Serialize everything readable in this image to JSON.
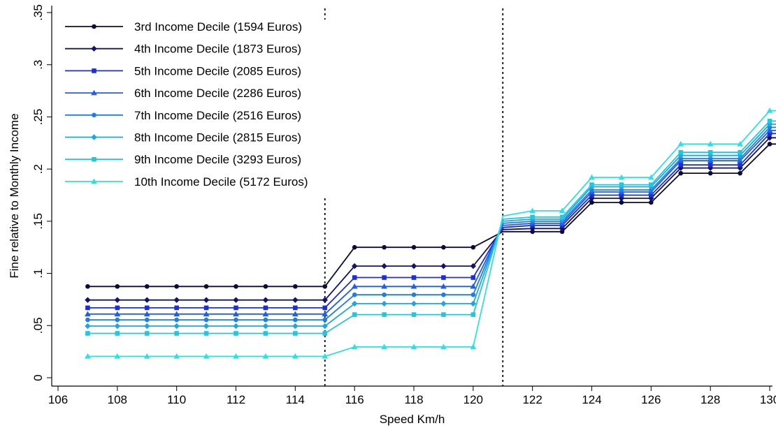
{
  "chart_data": {
    "type": "line",
    "title": "",
    "xlabel": "Speed Km/h",
    "ylabel": "Fine relative to Monthly Income",
    "xlim": [
      106,
      131
    ],
    "ylim": [
      0,
      0.35
    ],
    "x_ticks": [
      106,
      108,
      110,
      112,
      114,
      116,
      118,
      120,
      122,
      124,
      126,
      128,
      130
    ],
    "x_tick_labels": [
      "106",
      "108",
      "110",
      "112",
      "114",
      "116",
      "118",
      "120",
      "122",
      "124",
      "126",
      "128",
      "130"
    ],
    "y_ticks": [
      0,
      0.05,
      0.1,
      0.15,
      0.2,
      0.25,
      0.3,
      0.35
    ],
    "y_tick_labels": [
      "0",
      ".05",
      ".1",
      ".15",
      ".2",
      ".25",
      ".3",
      ".35"
    ],
    "grid": false,
    "legend_position": "top-left",
    "reference_lines_x": [
      115,
      121
    ],
    "x": [
      107,
      108,
      109,
      110,
      111,
      112,
      113,
      114,
      115,
      116,
      117,
      118,
      119,
      120,
      121,
      122,
      123,
      124,
      125,
      126,
      127,
      128,
      129,
      130,
      131
    ],
    "series": [
      {
        "name": "3rd Income Decile (1594 Euros)",
        "color": "#0b0b3b",
        "marker": "circle",
        "values": [
          0.0875,
          0.0875,
          0.0875,
          0.0875,
          0.0875,
          0.0875,
          0.0875,
          0.0875,
          0.0875,
          0.125,
          0.125,
          0.125,
          0.125,
          0.125,
          0.14,
          0.14,
          0.14,
          0.168,
          0.168,
          0.168,
          0.196,
          0.196,
          0.196,
          0.224,
          0.224
        ]
      },
      {
        "name": "4th Income Decile (1873 Euros)",
        "color": "#13136e",
        "marker": "diamond",
        "values": [
          0.0745,
          0.0745,
          0.0745,
          0.0745,
          0.0745,
          0.0745,
          0.0745,
          0.0745,
          0.0745,
          0.107,
          0.107,
          0.107,
          0.107,
          0.107,
          0.142,
          0.143,
          0.143,
          0.172,
          0.172,
          0.172,
          0.201,
          0.201,
          0.201,
          0.23,
          0.23
        ]
      },
      {
        "name": "5th Income Decile (2085 Euros)",
        "color": "#1c2ed6",
        "marker": "square",
        "values": [
          0.067,
          0.067,
          0.067,
          0.067,
          0.067,
          0.067,
          0.067,
          0.067,
          0.067,
          0.096,
          0.096,
          0.096,
          0.096,
          0.096,
          0.144,
          0.146,
          0.146,
          0.175,
          0.175,
          0.175,
          0.204,
          0.204,
          0.204,
          0.234,
          0.234
        ]
      },
      {
        "name": "6th Income Decile (2286 Euros)",
        "color": "#1f5ee8",
        "marker": "triangle",
        "values": [
          0.061,
          0.061,
          0.061,
          0.061,
          0.061,
          0.061,
          0.061,
          0.061,
          0.061,
          0.0875,
          0.0875,
          0.0875,
          0.0875,
          0.0875,
          0.146,
          0.148,
          0.148,
          0.178,
          0.178,
          0.178,
          0.208,
          0.208,
          0.208,
          0.237,
          0.237
        ]
      },
      {
        "name": "7th Income Decile (2516 Euros)",
        "color": "#1e7de6",
        "marker": "circle",
        "values": [
          0.0555,
          0.0555,
          0.0555,
          0.0555,
          0.0555,
          0.0555,
          0.0555,
          0.0555,
          0.0555,
          0.0795,
          0.0795,
          0.0795,
          0.0795,
          0.0795,
          0.148,
          0.15,
          0.15,
          0.18,
          0.18,
          0.18,
          0.21,
          0.21,
          0.21,
          0.24,
          0.24
        ]
      },
      {
        "name": "8th Income Decile (2815 Euros)",
        "color": "#1ea6e0",
        "marker": "diamond",
        "values": [
          0.0495,
          0.0495,
          0.0495,
          0.0495,
          0.0495,
          0.0495,
          0.0495,
          0.0495,
          0.0495,
          0.071,
          0.071,
          0.071,
          0.071,
          0.071,
          0.15,
          0.152,
          0.152,
          0.183,
          0.183,
          0.183,
          0.213,
          0.213,
          0.213,
          0.243,
          0.243
        ]
      },
      {
        "name": "9th Income Decile (3293 Euros)",
        "color": "#22c6de",
        "marker": "square",
        "values": [
          0.0425,
          0.0425,
          0.0425,
          0.0425,
          0.0425,
          0.0425,
          0.0425,
          0.0425,
          0.0425,
          0.0605,
          0.0605,
          0.0605,
          0.0605,
          0.0605,
          0.152,
          0.154,
          0.154,
          0.185,
          0.185,
          0.185,
          0.216,
          0.216,
          0.216,
          0.246,
          0.246
        ]
      },
      {
        "name": "10th Income Decile (5172 Euros)",
        "color": "#2ce0e6",
        "marker": "triangle",
        "values": [
          0.0205,
          0.0205,
          0.0205,
          0.0205,
          0.0205,
          0.0205,
          0.0205,
          0.0205,
          0.0205,
          0.0295,
          0.0295,
          0.0295,
          0.0295,
          0.0295,
          0.155,
          0.16,
          0.16,
          0.192,
          0.192,
          0.192,
          0.224,
          0.224,
          0.224,
          0.256,
          0.256
        ]
      }
    ]
  }
}
